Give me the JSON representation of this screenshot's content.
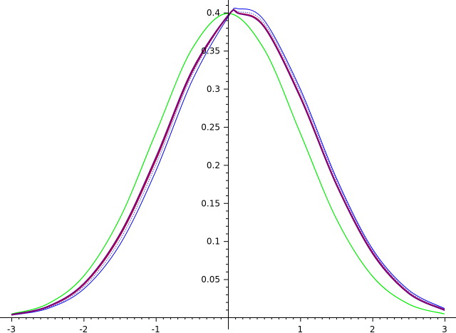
{
  "chart_data": {
    "type": "line",
    "title": "",
    "xlabel": "",
    "ylabel": "",
    "xlim": [
      -3,
      3
    ],
    "ylim": [
      0,
      0.41
    ],
    "grid": false,
    "legend": "none",
    "x_ticks": [
      "-3",
      "-2",
      "-1",
      "1",
      "2",
      "3"
    ],
    "x_tick_values": [
      -3,
      -2,
      -1,
      1,
      2,
      3
    ],
    "y_ticks": [
      "0.05",
      "0.1",
      "0.15",
      "0.2",
      "0.25",
      "0.3",
      "0.35",
      "0.4"
    ],
    "y_tick_values": [
      0.05,
      0.1,
      0.15,
      0.2,
      0.25,
      0.3,
      0.35,
      0.4
    ],
    "series": [
      {
        "color": "#00ee00",
        "width": 1.2,
        "style": "solid",
        "x": [
          -3.0,
          -2.5,
          -2.0,
          -1.5,
          -1.0,
          -0.5,
          0.0,
          0.5,
          1.0,
          1.5,
          2.0,
          2.5,
          3.0
        ],
        "y": [
          0.0044,
          0.0175,
          0.054,
          0.1295,
          0.242,
          0.352,
          0.3989,
          0.352,
          0.242,
          0.1295,
          0.054,
          0.0175,
          0.0044
        ]
      },
      {
        "color": "#0000ee",
        "width": 1.0,
        "style": "solid",
        "x": [
          -3.0,
          -2.5,
          -2.0,
          -1.5,
          -1.0,
          -0.5,
          0.0,
          0.15,
          0.5,
          1.0,
          1.5,
          2.0,
          2.5,
          3.0
        ],
        "y": [
          0.0028,
          0.0114,
          0.037,
          0.095,
          0.192,
          0.31,
          0.394,
          0.405,
          0.39,
          0.3,
          0.183,
          0.09,
          0.036,
          0.0115
        ]
      },
      {
        "color": "#4040ff",
        "width": 1.0,
        "style": "dotted",
        "x": [
          -3.0,
          -2.5,
          -2.0,
          -1.5,
          -1.0,
          -0.5,
          0.0,
          0.15,
          0.5,
          1.0,
          1.5,
          2.0,
          2.5,
          3.0
        ],
        "y": [
          0.0031,
          0.0124,
          0.04,
          0.101,
          0.2,
          0.318,
          0.396,
          0.401,
          0.386,
          0.296,
          0.18,
          0.088,
          0.034,
          0.0106
        ]
      },
      {
        "color": "#aa0050",
        "width": 2.2,
        "style": "solid",
        "x": [
          -3.0,
          -2.5,
          -2.0,
          -1.5,
          -1.0,
          -0.5,
          0.0,
          0.15,
          0.5,
          1.0,
          1.5,
          2.0,
          2.5,
          3.0
        ],
        "y": [
          0.0035,
          0.0138,
          0.043,
          0.107,
          0.207,
          0.322,
          0.396,
          0.399,
          0.382,
          0.29,
          0.175,
          0.085,
          0.032,
          0.0095
        ]
      },
      {
        "color": "#5a0090",
        "width": 1.0,
        "style": "solid",
        "x": [
          -3.0,
          -2.5,
          -2.0,
          -1.5,
          -1.0,
          -0.5,
          0.0,
          0.15,
          0.5,
          1.0,
          1.5,
          2.0,
          2.5,
          3.0
        ],
        "y": [
          0.0037,
          0.0144,
          0.0445,
          0.1095,
          0.2105,
          0.3245,
          0.3965,
          0.3985,
          0.3805,
          0.288,
          0.1735,
          0.0835,
          0.0312,
          0.009
        ]
      }
    ]
  }
}
